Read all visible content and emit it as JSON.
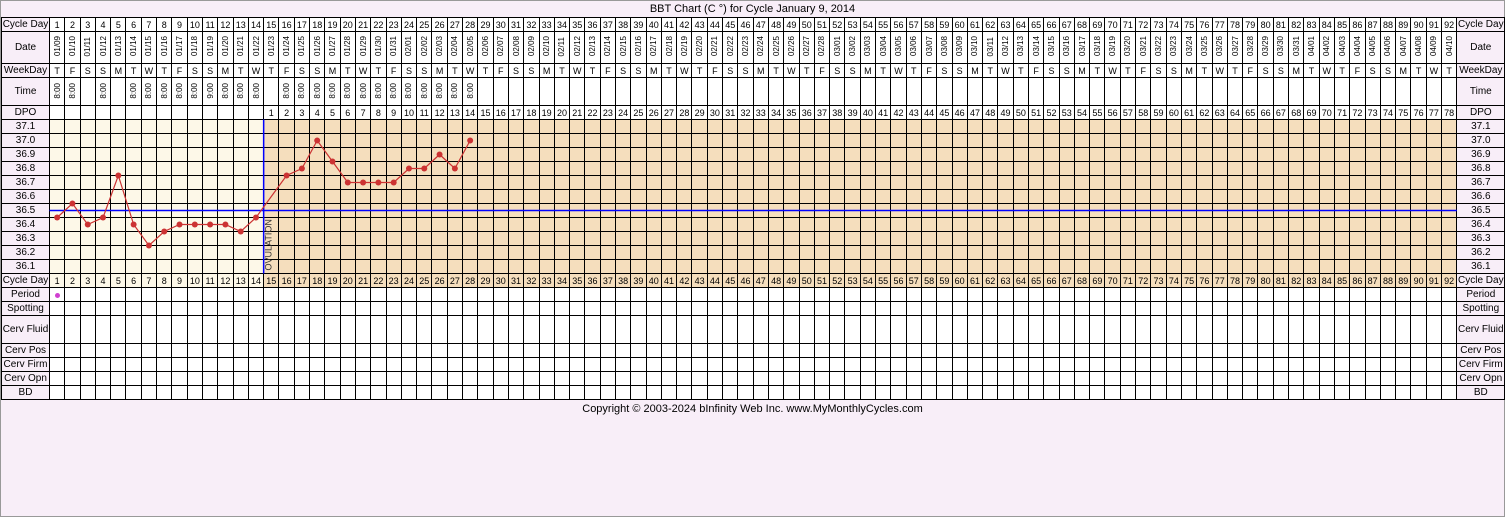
{
  "title": "BBT Chart (C °) for Cycle January 9, 2014",
  "footer": "Copyright © 2003-2024 bInfinity Web Inc.    www.MyMonthlyCycles.com",
  "num_days": 92,
  "col_width": 15.3,
  "label_col_width": 48,
  "ovulation_day": 14,
  "coverline_temp": 36.5,
  "row_headers": {
    "cycle_day": "Cycle Day",
    "date": "Date",
    "weekday": "WeekDay",
    "time": "Time",
    "dpo": "DPO",
    "period": "Period",
    "spotting": "Spotting",
    "cerv_fluid": "Cerv Fluid",
    "cerv_pos": "Cerv Pos",
    "cerv_firm": "Cerv Firm",
    "cerv_opn": "Cerv Opn",
    "bd": "BD"
  },
  "dates": [
    "01/09",
    "01/10",
    "01/11",
    "01/12",
    "01/13",
    "01/14",
    "01/15",
    "01/16",
    "01/17",
    "01/18",
    "01/19",
    "01/20",
    "01/21",
    "01/22",
    "01/23",
    "01/24",
    "01/25",
    "01/26",
    "01/27",
    "01/28",
    "01/29",
    "01/30",
    "01/31",
    "02/01",
    "02/02",
    "02/03",
    "02/04",
    "02/05",
    "02/06",
    "02/07",
    "02/08",
    "02/09",
    "02/10",
    "02/11",
    "02/12",
    "02/13",
    "02/14",
    "02/15",
    "02/16",
    "02/17",
    "02/18",
    "02/19",
    "02/20",
    "02/21",
    "02/22",
    "02/23",
    "02/24",
    "02/25",
    "02/26",
    "02/27",
    "02/28",
    "03/01",
    "03/02",
    "03/03",
    "03/04",
    "03/05",
    "03/06",
    "03/07",
    "03/08",
    "03/09",
    "03/10",
    "03/11",
    "03/12",
    "03/13",
    "03/14",
    "03/15",
    "03/16",
    "03/17",
    "03/18",
    "03/19",
    "03/20",
    "03/21",
    "03/22",
    "03/23",
    "03/24",
    "03/25",
    "03/26",
    "03/27",
    "03/28",
    "03/29",
    "03/30",
    "03/31",
    "04/01",
    "04/02",
    "04/03",
    "04/04",
    "04/05",
    "04/06",
    "04/07",
    "04/08",
    "04/09",
    "04/10"
  ],
  "weekdays": [
    "T",
    "F",
    "S",
    "S",
    "M",
    "T",
    "W",
    "T",
    "F",
    "S",
    "S",
    "M",
    "T",
    "W",
    "T",
    "F",
    "S",
    "S",
    "M",
    "T",
    "W",
    "T",
    "F",
    "S",
    "S",
    "M",
    "T",
    "W",
    "T",
    "F",
    "S",
    "S",
    "M",
    "T",
    "W",
    "T",
    "F",
    "S",
    "S",
    "M",
    "T",
    "W",
    "T",
    "F",
    "S",
    "S",
    "M",
    "T",
    "W",
    "T",
    "F",
    "S",
    "S",
    "M",
    "T",
    "W",
    "T",
    "F",
    "S",
    "S",
    "M",
    "T",
    "W",
    "T",
    "F",
    "S",
    "S",
    "M",
    "T",
    "W",
    "T",
    "F",
    "S",
    "S",
    "M",
    "T",
    "W",
    "T",
    "F",
    "S",
    "S",
    "M",
    "T",
    "W",
    "T",
    "F",
    "S",
    "S",
    "M",
    "T",
    "W",
    "T"
  ],
  "times": [
    "8:00",
    "8:00",
    "",
    "8:00",
    "",
    "8:00",
    "8:00",
    "8:00",
    "8:00",
    "8:00",
    "9:00",
    "8:00",
    "8:00",
    "8:00",
    "",
    "8:00",
    "8:00",
    "8:00",
    "8:00",
    "8:00",
    "8:00",
    "8:00",
    "8:00",
    "8:00",
    "8:00",
    "8:00",
    "8:00",
    "8:00"
  ],
  "dpo": [
    "",
    "",
    "",
    "",
    "",
    "",
    "",
    "",
    "",
    "",
    "",
    "",
    "",
    "",
    "1",
    "2",
    "3",
    "4",
    "5",
    "6",
    "7",
    "8",
    "9",
    "10",
    "11",
    "12",
    "13",
    "14",
    "15",
    "16",
    "17",
    "18",
    "19",
    "20",
    "21",
    "22",
    "23",
    "24",
    "25",
    "26",
    "27",
    "28",
    "29",
    "30",
    "31",
    "32",
    "33",
    "34",
    "35",
    "36",
    "37",
    "38",
    "39",
    "40",
    "41",
    "42",
    "43",
    "44",
    "45",
    "46",
    "47",
    "48",
    "49",
    "50",
    "51",
    "52",
    "53",
    "54",
    "55",
    "56",
    "57",
    "58",
    "59",
    "60",
    "61",
    "62",
    "63",
    "64",
    "65",
    "66",
    "67",
    "68",
    "69",
    "70",
    "71",
    "72",
    "73",
    "74",
    "75",
    "76",
    "77",
    "78"
  ],
  "temp_scale": [
    37.1,
    37.0,
    36.9,
    36.8,
    36.7,
    36.6,
    36.5,
    36.4,
    36.3,
    36.2,
    36.1
  ],
  "temp_row_height": 14,
  "temps": [
    {
      "day": 1,
      "temp": 36.45
    },
    {
      "day": 2,
      "temp": 36.55
    },
    {
      "day": 3,
      "temp": 36.4
    },
    {
      "day": 4,
      "temp": 36.45
    },
    {
      "day": 5,
      "temp": 36.75
    },
    {
      "day": 6,
      "temp": 36.4
    },
    {
      "day": 7,
      "temp": 36.25
    },
    {
      "day": 8,
      "temp": 36.35
    },
    {
      "day": 9,
      "temp": 36.4
    },
    {
      "day": 10,
      "temp": 36.4
    },
    {
      "day": 11,
      "temp": 36.4
    },
    {
      "day": 12,
      "temp": 36.4
    },
    {
      "day": 13,
      "temp": 36.35
    },
    {
      "day": 14,
      "temp": 36.45
    },
    {
      "day": 16,
      "temp": 36.75
    },
    {
      "day": 17,
      "temp": 36.8
    },
    {
      "day": 18,
      "temp": 37.0
    },
    {
      "day": 19,
      "temp": 36.85
    },
    {
      "day": 20,
      "temp": 36.7
    },
    {
      "day": 21,
      "temp": 36.7
    },
    {
      "day": 22,
      "temp": 36.7
    },
    {
      "day": 23,
      "temp": 36.7
    },
    {
      "day": 24,
      "temp": 36.8
    },
    {
      "day": 25,
      "temp": 36.8
    },
    {
      "day": 26,
      "temp": 36.9
    },
    {
      "day": 27,
      "temp": 36.8
    },
    {
      "day": 28,
      "temp": 37.0
    }
  ],
  "period_days": [
    1
  ],
  "colors": {
    "background": "#f8eef8",
    "pre_ov": "#fdf8e8",
    "post_ov": "#f5debd",
    "line": "#cc3333",
    "dot": "#cc3333",
    "coverline": "#0000ff",
    "ovline": "#0000ff",
    "border": "#000000"
  },
  "ovulation_label": "OVULATION"
}
